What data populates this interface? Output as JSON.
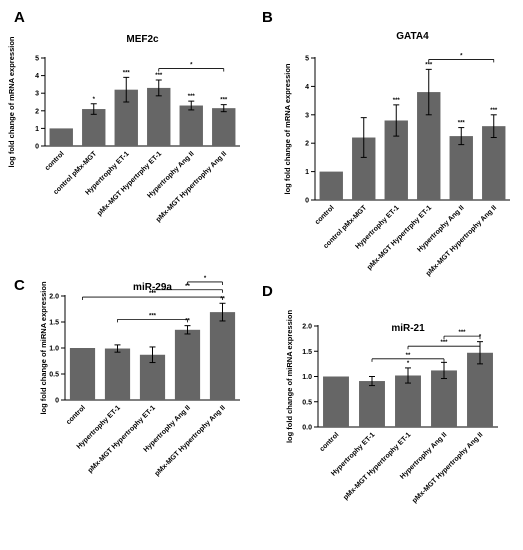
{
  "chart_data": [
    {
      "panel": "A",
      "type": "bar",
      "title": "MEF2c",
      "ylabel": "log fold change of mRNA expression",
      "ylim": [
        0,
        5
      ],
      "yticks": [
        "0",
        "1",
        "2",
        "3",
        "4",
        "5"
      ],
      "categories": [
        "control",
        "control pMx-MGT",
        "Hypertrophy ET-1",
        "pMx-MGT Hypertrphy ET-1",
        "Hypertrophy Ang II",
        "pMx-MGT Hypertrophy Ang II"
      ],
      "values": [
        1.0,
        2.1,
        3.2,
        3.3,
        2.3,
        2.15
      ],
      "errors": [
        0,
        0.3,
        0.7,
        0.45,
        0.25,
        0.2
      ],
      "bar_labels": [
        "",
        "*",
        "***",
        "***",
        "***",
        "***"
      ],
      "brackets": [
        {
          "from": 3,
          "to": 5,
          "label": "*",
          "y": 4.4
        }
      ],
      "bar_color": "#666666"
    },
    {
      "panel": "B",
      "type": "bar",
      "title": "GATA4",
      "ylabel": "log fold change of mRNA expression",
      "ylim": [
        0,
        5
      ],
      "yticks": [
        "0",
        "1",
        "2",
        "3",
        "4",
        "5"
      ],
      "categories": [
        "control",
        "control pMx-MGT",
        "Hypertrophy ET-1",
        "pMx-MGT Hypertrphy ET-1",
        "Hypertrophy Ang II",
        "pMx-MGT Hypertrophy Ang II"
      ],
      "values": [
        1.0,
        2.2,
        2.8,
        3.8,
        2.25,
        2.6
      ],
      "errors": [
        0,
        0.7,
        0.55,
        0.8,
        0.3,
        0.4
      ],
      "bar_labels": [
        "",
        "",
        "***",
        "***",
        "***",
        "***"
      ],
      "brackets": [
        {
          "from": 3,
          "to": 5,
          "label": "*",
          "y": 4.95
        }
      ],
      "bar_color": "#666666"
    },
    {
      "panel": "C",
      "type": "bar",
      "title": "miR-29a",
      "ylabel": "log fold change of miRNA expression",
      "ylim": [
        0,
        2.0
      ],
      "yticks": [
        "0",
        "0.5",
        "1.0",
        "1.5",
        "2.0"
      ],
      "categories": [
        "control",
        "Hypertrophy ET-1",
        "pMx-MGT Hypertrophy ET-1",
        "Hypertrophy Ang II",
        "pMx-MGT Hypertrophy Ang II"
      ],
      "values": [
        1.0,
        0.99,
        0.87,
        1.35,
        1.69
      ],
      "errors": [
        0,
        0.07,
        0.15,
        0.08,
        0.17
      ],
      "bar_labels": [
        "",
        "",
        "",
        "**",
        "**"
      ],
      "brackets": [
        {
          "from": 1,
          "to": 3,
          "label": "***",
          "y": 1.55
        },
        {
          "from": 0,
          "to": 4,
          "label": "***",
          "y": 1.98
        },
        {
          "from": 2,
          "to": 4,
          "label": "**",
          "y": 2.12
        },
        {
          "from": 3,
          "to": 4,
          "label": "*",
          "y": 2.27
        }
      ],
      "bar_color": "#666666"
    },
    {
      "panel": "D",
      "type": "bar",
      "title": "miR-21",
      "ylabel": "log fold change of miRNA expression",
      "ylim": [
        0,
        2.0
      ],
      "yticks": [
        "0.0",
        "0.5",
        "1.0",
        "1.5",
        "2.0"
      ],
      "categories": [
        "control",
        "Hypertrophy ET-1",
        "pMx-MGT Hypertrophy ET-1",
        "Hypertrophy Ang II",
        "pMx-MGT Hypertrophy Ang II"
      ],
      "values": [
        1.0,
        0.91,
        1.02,
        1.12,
        1.47
      ],
      "errors": [
        0,
        0.09,
        0.15,
        0.16,
        0.22
      ],
      "bar_labels": [
        "",
        "",
        "*",
        "",
        "*"
      ],
      "brackets": [
        {
          "from": 1,
          "to": 3,
          "label": "**",
          "y": 1.35
        },
        {
          "from": 2,
          "to": 4,
          "label": "***",
          "y": 1.6
        },
        {
          "from": 3,
          "to": 4,
          "label": "***",
          "y": 1.8
        }
      ],
      "bar_color": "#666666"
    }
  ]
}
